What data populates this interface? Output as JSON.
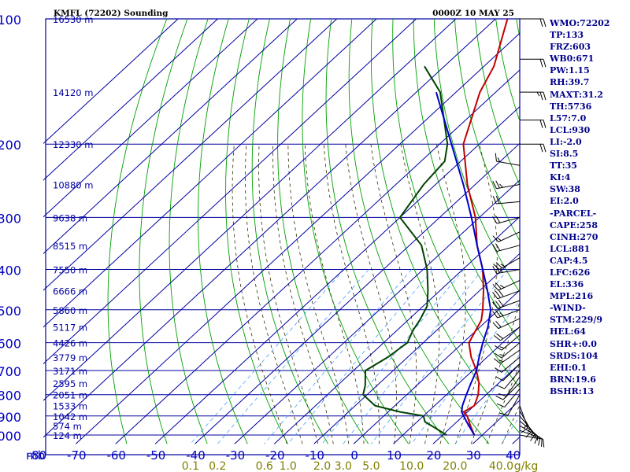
{
  "header": {
    "title": "KMFL (72202) Sounding",
    "valid_time": "0000Z 10 MAY 25"
  },
  "colors": {
    "grid": "#0000a0",
    "label": "#0000c0",
    "dry_adiabat": "#00a000",
    "moist_adiabat": "#2f2f00",
    "mixing_ratio": "#4aa0ff",
    "temperature": "#c00000",
    "dewpoint": "#004400",
    "parcel": "#0000cc",
    "mr_label": "#808000",
    "wind_barb": "#000000"
  },
  "indices": [
    "WMO:72202",
    "TP:133",
    "FRZ:603",
    "WB0:671",
    "PW:1.15",
    "RH:39.7",
    "MAXT:31.2",
    "TH:5736",
    "L57:7.0",
    "LCL:930",
    "LI:-2.0",
    "SI:8.5",
    "TT:35",
    "KI:4",
    "SW:38",
    "EI:2.0",
    "-PARCEL-",
    "CAPE:258",
    "CINH:270",
    "LCL:881",
    "CAP:4.5",
    "LFC:626",
    "EL:336",
    "MPL:216",
    "-WIND-",
    "STM:229/9",
    "HEL:64",
    "SHR+:0.0",
    "SRDS:104",
    "EHI:0.1",
    "BRN:19.6",
    "BSHR:13"
  ],
  "chart_data": {
    "type": "line",
    "diagram": "skew-T log-P",
    "pressure_axis": {
      "unit_label": "mb",
      "levels": [
        100,
        200,
        300,
        400,
        500,
        600,
        700,
        800,
        900,
        1000
      ],
      "range": [
        100,
        1050
      ],
      "log": true
    },
    "temperature_axis": {
      "ticks": [
        -80,
        -70,
        -60,
        -50,
        -40,
        -30,
        -20,
        -10,
        0,
        10,
        20,
        30,
        40
      ],
      "range": [
        -80,
        40
      ]
    },
    "height_labels": [
      {
        "p": 100,
        "label": "16530 m"
      },
      {
        "p": 150,
        "label": "14120 m"
      },
      {
        "p": 200,
        "label": "12330 m"
      },
      {
        "p": 250,
        "label": "10880 m"
      },
      {
        "p": 300,
        "label": "9638 m"
      },
      {
        "p": 350,
        "label": "8515 m"
      },
      {
        "p": 400,
        "label": "7550 m"
      },
      {
        "p": 450,
        "label": "6666 m"
      },
      {
        "p": 500,
        "label": "5860 m"
      },
      {
        "p": 550,
        "label": "5117 m"
      },
      {
        "p": 600,
        "label": "4426 m"
      },
      {
        "p": 650,
        "label": "3779 m"
      },
      {
        "p": 700,
        "label": "3171 m"
      },
      {
        "p": 750,
        "label": "2595 m"
      },
      {
        "p": 800,
        "label": "2051 m"
      },
      {
        "p": 850,
        "label": "1533 m"
      },
      {
        "p": 900,
        "label": "1042 m"
      },
      {
        "p": 950,
        "label": "574 m"
      },
      {
        "p": 1000,
        "label": "124 m"
      }
    ],
    "mixing_ratio_labels": [
      "0.1",
      "0.2",
      "0.6",
      "1.0",
      "2.0",
      "3.0",
      "5.0",
      "10.0",
      "20.0",
      "40.0",
      "g/kg"
    ],
    "mixing_ratio_values": [
      0.1,
      0.2,
      0.6,
      1.0,
      2.0,
      3.0,
      5.0,
      10.0,
      20.0,
      40.0
    ],
    "series": [
      {
        "id": "temperature",
        "points": [
          {
            "p": 100,
            "t": -77
          },
          {
            "p": 130,
            "t": -67.5
          },
          {
            "p": 150,
            "t": -64
          },
          {
            "p": 200,
            "t": -54
          },
          {
            "p": 250,
            "t": -42
          },
          {
            "p": 300,
            "t": -31
          },
          {
            "p": 350,
            "t": -23
          },
          {
            "p": 400,
            "t": -15
          },
          {
            "p": 450,
            "t": -9
          },
          {
            "p": 500,
            "t": -4
          },
          {
            "p": 530,
            "t": -1.5
          },
          {
            "p": 600,
            "t": 1.5
          },
          {
            "p": 650,
            "t": 6
          },
          {
            "p": 700,
            "t": 11
          },
          {
            "p": 750,
            "t": 15
          },
          {
            "p": 800,
            "t": 18
          },
          {
            "p": 850,
            "t": 20
          },
          {
            "p": 880,
            "t": 19
          },
          {
            "p": 900,
            "t": 21
          },
          {
            "p": 950,
            "t": 24.5
          },
          {
            "p": 1000,
            "t": 28
          }
        ]
      },
      {
        "id": "dewpoint",
        "points": [
          {
            "p": 130,
            "t": -85
          },
          {
            "p": 150,
            "t": -74
          },
          {
            "p": 200,
            "t": -58
          },
          {
            "p": 220,
            "t": -54
          },
          {
            "p": 250,
            "t": -53
          },
          {
            "p": 300,
            "t": -50
          },
          {
            "p": 350,
            "t": -37
          },
          {
            "p": 400,
            "t": -29
          },
          {
            "p": 450,
            "t": -23
          },
          {
            "p": 490,
            "t": -19
          },
          {
            "p": 530,
            "t": -17
          },
          {
            "p": 560,
            "t": -16
          },
          {
            "p": 600,
            "t": -14
          },
          {
            "p": 650,
            "t": -15
          },
          {
            "p": 700,
            "t": -17
          },
          {
            "p": 760,
            "t": -13
          },
          {
            "p": 800,
            "t": -11
          },
          {
            "p": 850,
            "t": -5
          },
          {
            "p": 880,
            "t": 3
          },
          {
            "p": 900,
            "t": 10
          },
          {
            "p": 930,
            "t": 12
          },
          {
            "p": 960,
            "t": 16
          },
          {
            "p": 1000,
            "t": 21
          }
        ]
      },
      {
        "id": "parcel",
        "points": [
          {
            "p": 150,
            "t": -75
          },
          {
            "p": 200,
            "t": -57
          },
          {
            "p": 250,
            "t": -43
          },
          {
            "p": 300,
            "t": -32
          },
          {
            "p": 350,
            "t": -23
          },
          {
            "p": 400,
            "t": -15
          },
          {
            "p": 450,
            "t": -8
          },
          {
            "p": 500,
            "t": -2
          },
          {
            "p": 550,
            "t": 2
          },
          {
            "p": 600,
            "t": 5
          },
          {
            "p": 650,
            "t": 8
          },
          {
            "p": 700,
            "t": 11
          },
          {
            "p": 750,
            "t": 13
          },
          {
            "p": 800,
            "t": 15
          },
          {
            "p": 850,
            "t": 17
          },
          {
            "p": 880,
            "t": 18.5
          },
          {
            "p": 930,
            "t": 22.5
          },
          {
            "p": 1000,
            "t": 28
          }
        ]
      }
    ],
    "wind_barbs": [
      {
        "p": 100,
        "dir": 90,
        "spd": 20
      },
      {
        "p": 125,
        "dir": 90,
        "spd": 20
      },
      {
        "p": 150,
        "dir": 90,
        "spd": 25
      },
      {
        "p": 175,
        "dir": 90,
        "spd": 20
      },
      {
        "p": 200,
        "dir": 90,
        "spd": 20
      },
      {
        "p": 225,
        "dir": 280,
        "spd": 15
      },
      {
        "p": 250,
        "dir": 260,
        "spd": 25
      },
      {
        "p": 275,
        "dir": 265,
        "spd": 20
      },
      {
        "p": 300,
        "dir": 255,
        "spd": 20
      },
      {
        "p": 325,
        "dir": 245,
        "spd": 15
      },
      {
        "p": 350,
        "dir": 255,
        "spd": 20
      },
      {
        "p": 375,
        "dir": 240,
        "spd": 25
      },
      {
        "p": 400,
        "dir": 260,
        "spd": 25
      },
      {
        "p": 425,
        "dir": 245,
        "spd": 25
      },
      {
        "p": 450,
        "dir": 250,
        "spd": 30
      },
      {
        "p": 475,
        "dir": 250,
        "spd": 30
      },
      {
        "p": 500,
        "dir": 250,
        "spd": 25
      },
      {
        "p": 525,
        "dir": 245,
        "spd": 20
      },
      {
        "p": 550,
        "dir": 235,
        "spd": 20
      },
      {
        "p": 575,
        "dir": 230,
        "spd": 15
      },
      {
        "p": 600,
        "dir": 230,
        "spd": 15
      },
      {
        "p": 625,
        "dir": 235,
        "spd": 15
      },
      {
        "p": 650,
        "dir": 230,
        "spd": 10
      },
      {
        "p": 675,
        "dir": 225,
        "spd": 10
      },
      {
        "p": 700,
        "dir": 220,
        "spd": 10
      },
      {
        "p": 725,
        "dir": 215,
        "spd": 10
      },
      {
        "p": 750,
        "dir": 225,
        "spd": 10
      },
      {
        "p": 775,
        "dir": 220,
        "spd": 10
      },
      {
        "p": 800,
        "dir": 210,
        "spd": 10
      },
      {
        "p": 850,
        "dir": 160,
        "spd": 15
      },
      {
        "p": 875,
        "dir": 150,
        "spd": 15
      },
      {
        "p": 900,
        "dir": 140,
        "spd": 15
      },
      {
        "p": 925,
        "dir": 130,
        "spd": 15
      },
      {
        "p": 950,
        "dir": 120,
        "spd": 15
      },
      {
        "p": 975,
        "dir": 110,
        "spd": 10
      },
      {
        "p": 1000,
        "dir": 100,
        "spd": 10
      }
    ]
  }
}
